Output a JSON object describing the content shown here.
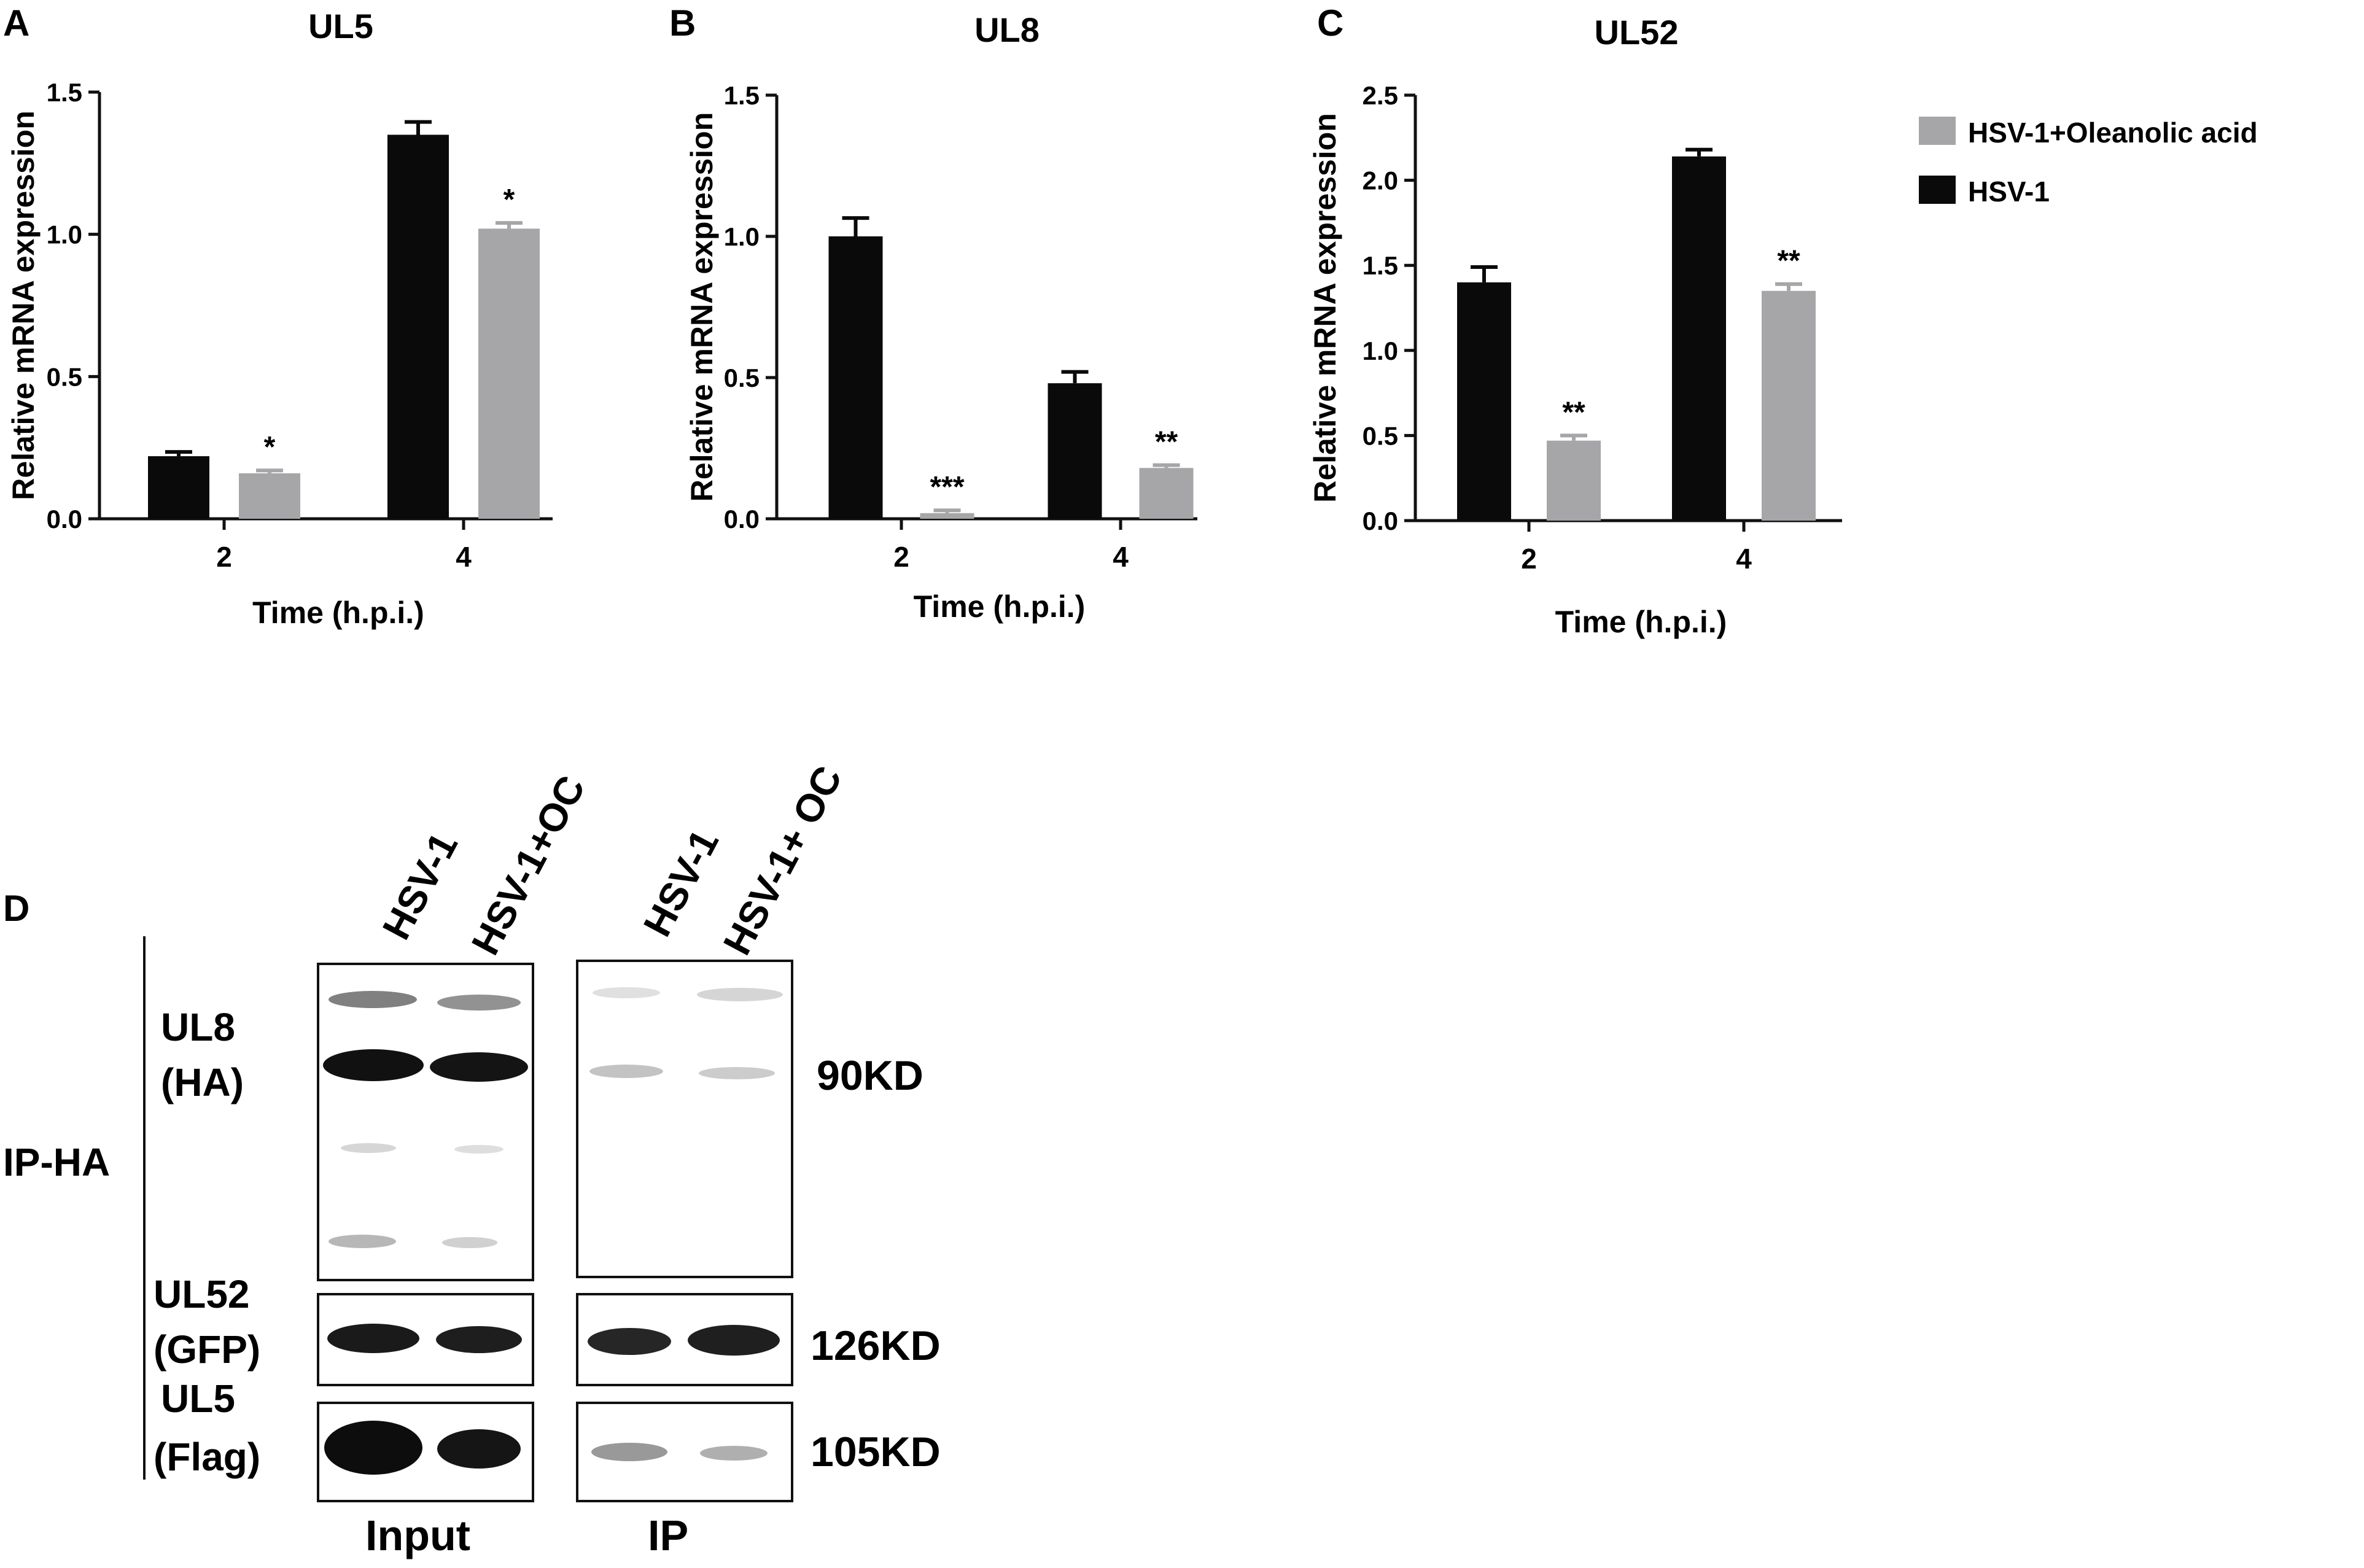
{
  "panels": {
    "A": {
      "letter": "A"
    },
    "B": {
      "letter": "B"
    },
    "C": {
      "letter": "C"
    },
    "D": {
      "letter": "D"
    }
  },
  "legend": [
    {
      "name": "HSV-1+Oleanolic acid",
      "color": "#a6a6a8"
    },
    {
      "name": "HSV-1",
      "color": "#0a0a0a"
    }
  ],
  "chart_data": [
    {
      "type": "bar",
      "title": "UL5",
      "xlabel": "Time (h.p.i.)",
      "ylabel": "Relative mRNA expression",
      "categories": [
        "2",
        "4"
      ],
      "ylim": [
        0,
        1.5
      ],
      "yticks": [
        "0.0",
        "0.5",
        "1.0",
        "1.5"
      ],
      "series": [
        {
          "name": "HSV-1",
          "values": [
            0.22,
            1.35
          ],
          "errors": [
            0.015,
            0.045
          ]
        },
        {
          "name": "HSV-1+Oleanolic acid",
          "values": [
            0.16,
            1.02
          ],
          "errors": [
            0.01,
            0.02
          ]
        }
      ],
      "annotations": [
        {
          "category": "2",
          "series": "HSV-1+Oleanolic acid",
          "text": "*"
        },
        {
          "category": "4",
          "series": "HSV-1+Oleanolic acid",
          "text": "*"
        }
      ]
    },
    {
      "type": "bar",
      "title": "UL8",
      "xlabel": "Time (h.p.i.)",
      "ylabel": "Relative mRNA expression",
      "categories": [
        "2",
        "4"
      ],
      "ylim": [
        0,
        1.5
      ],
      "yticks": [
        "0.0",
        "0.5",
        "1.0",
        "1.5"
      ],
      "series": [
        {
          "name": "HSV-1",
          "values": [
            1.0,
            0.48
          ],
          "errors": [
            0.065,
            0.04
          ]
        },
        {
          "name": "HSV-1+Oleanolic acid",
          "values": [
            0.02,
            0.18
          ],
          "errors": [
            0.01,
            0.01
          ]
        }
      ],
      "annotations": [
        {
          "category": "2",
          "series": "HSV-1+Oleanolic acid",
          "text": "***"
        },
        {
          "category": "4",
          "series": "HSV-1+Oleanolic acid",
          "text": "**"
        }
      ]
    },
    {
      "type": "bar",
      "title": "UL52",
      "xlabel": "Time (h.p.i.)",
      "ylabel": "Relative mRNA expression",
      "categories": [
        "2",
        "4"
      ],
      "ylim": [
        0,
        2.5
      ],
      "yticks": [
        "0.0",
        "0.5",
        "1.0",
        "1.5",
        "2.0",
        "2.5"
      ],
      "series": [
        {
          "name": "HSV-1",
          "values": [
            1.4,
            2.14
          ],
          "errors": [
            0.09,
            0.04
          ]
        },
        {
          "name": "HSV-1+Oleanolic acid",
          "values": [
            0.47,
            1.35
          ],
          "errors": [
            0.03,
            0.04
          ]
        }
      ],
      "annotations": [
        {
          "category": "2",
          "series": "HSV-1+Oleanolic acid",
          "text": "**"
        },
        {
          "category": "4",
          "series": "HSV-1+Oleanolic acid",
          "text": "**"
        }
      ]
    }
  ],
  "blot": {
    "ip_label": "IP-HA",
    "lanes": {
      "input": [
        "HSV-1",
        "HSV-1+OC"
      ],
      "ip": [
        "HSV-1",
        "HSV-1+ OC"
      ]
    },
    "rows": [
      {
        "protein": "UL8",
        "tag": "(HA)",
        "size": "90KD"
      },
      {
        "protein": "UL52",
        "tag": "(GFP)",
        "size": "126KD"
      },
      {
        "protein": "UL5",
        "tag": "(Flag)",
        "size": "105KD"
      }
    ],
    "section_labels": {
      "input": "Input",
      "ip": "IP"
    }
  }
}
